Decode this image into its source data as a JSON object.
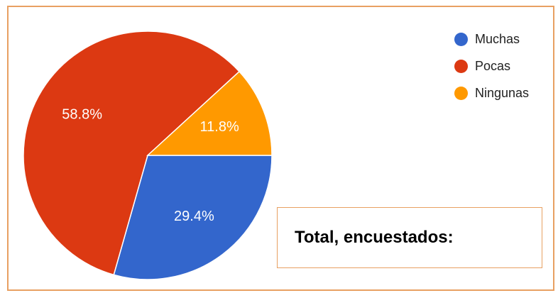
{
  "chart_data": {
    "type": "pie",
    "categories": [
      "Muchas",
      "Pocas",
      "Ningunas"
    ],
    "values": [
      29.4,
      58.8,
      11.8
    ],
    "labels": [
      "29.4%",
      "58.8%",
      "11.8%"
    ],
    "colors": [
      "#3366CC",
      "#DC3912",
      "#FF9900"
    ],
    "start_angle": 0,
    "direction": "clockwise",
    "legend_position": "top-right"
  },
  "legend": {
    "items": [
      {
        "label": "Muchas",
        "color": "#3366CC"
      },
      {
        "label": "Pocas",
        "color": "#DC3912"
      },
      {
        "label": "Ningunas",
        "color": "#FF9900"
      }
    ]
  },
  "annotation": {
    "text": "Total, encuestados:"
  },
  "colors": {
    "frame_border": "#E8A062"
  }
}
